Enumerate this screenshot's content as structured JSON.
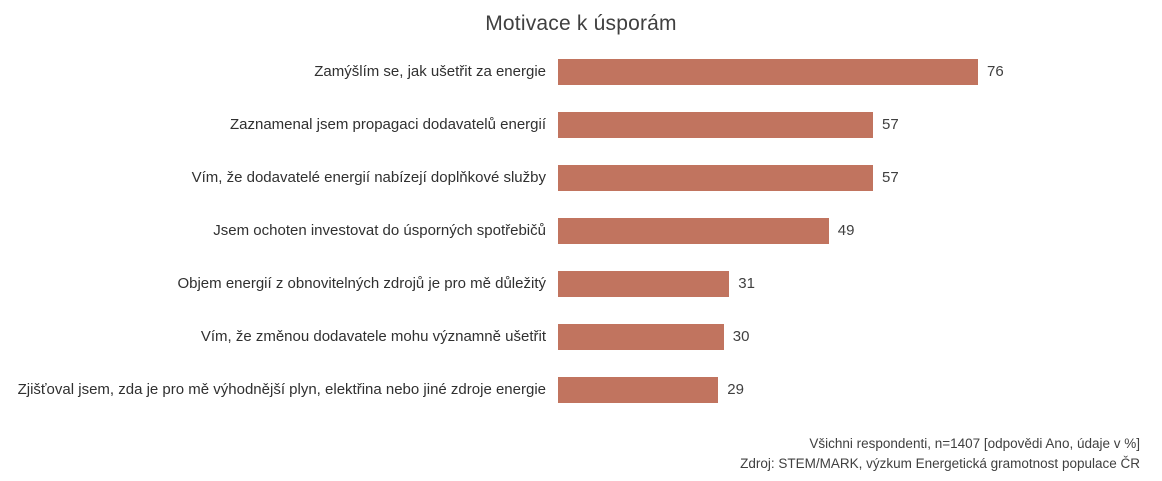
{
  "title": "Motivace k úsporám",
  "chart_data": {
    "type": "bar",
    "orientation": "horizontal",
    "title": "Motivace k úsporám",
    "categories": [
      "Zamýšlím se, jak ušetřit za energie",
      "Zaznamenal jsem propagaci dodavatelů energií",
      "Vím, že dodavatelé energií nabízejí doplňkové služby",
      "Jsem ochoten investovat do úsporných spotřebičů",
      "Objem energií z obnovitelných zdrojů je pro mě důležitý",
      "Vím, že změnou dodavatele mohu významně ušetřit",
      "Zjišťoval jsem, zda je pro mě výhodnější plyn, elektřina nebo jiné zdroje energie"
    ],
    "values": [
      76,
      57,
      57,
      49,
      31,
      30,
      29
    ],
    "unit": "%",
    "xlim": [
      0,
      80
    ],
    "grid": false,
    "axes_hidden": true,
    "data_labels": true,
    "bar_color": "#c1745f",
    "label_color": "#303030",
    "value_label_color": "#404040"
  },
  "footer": {
    "line1": "Všichni respondenti, n=1407 [odpovědi Ano, údaje v %]",
    "line2": "Zdroj: STEM/MARK, výzkum Energetická gramotnost populace ČR"
  }
}
